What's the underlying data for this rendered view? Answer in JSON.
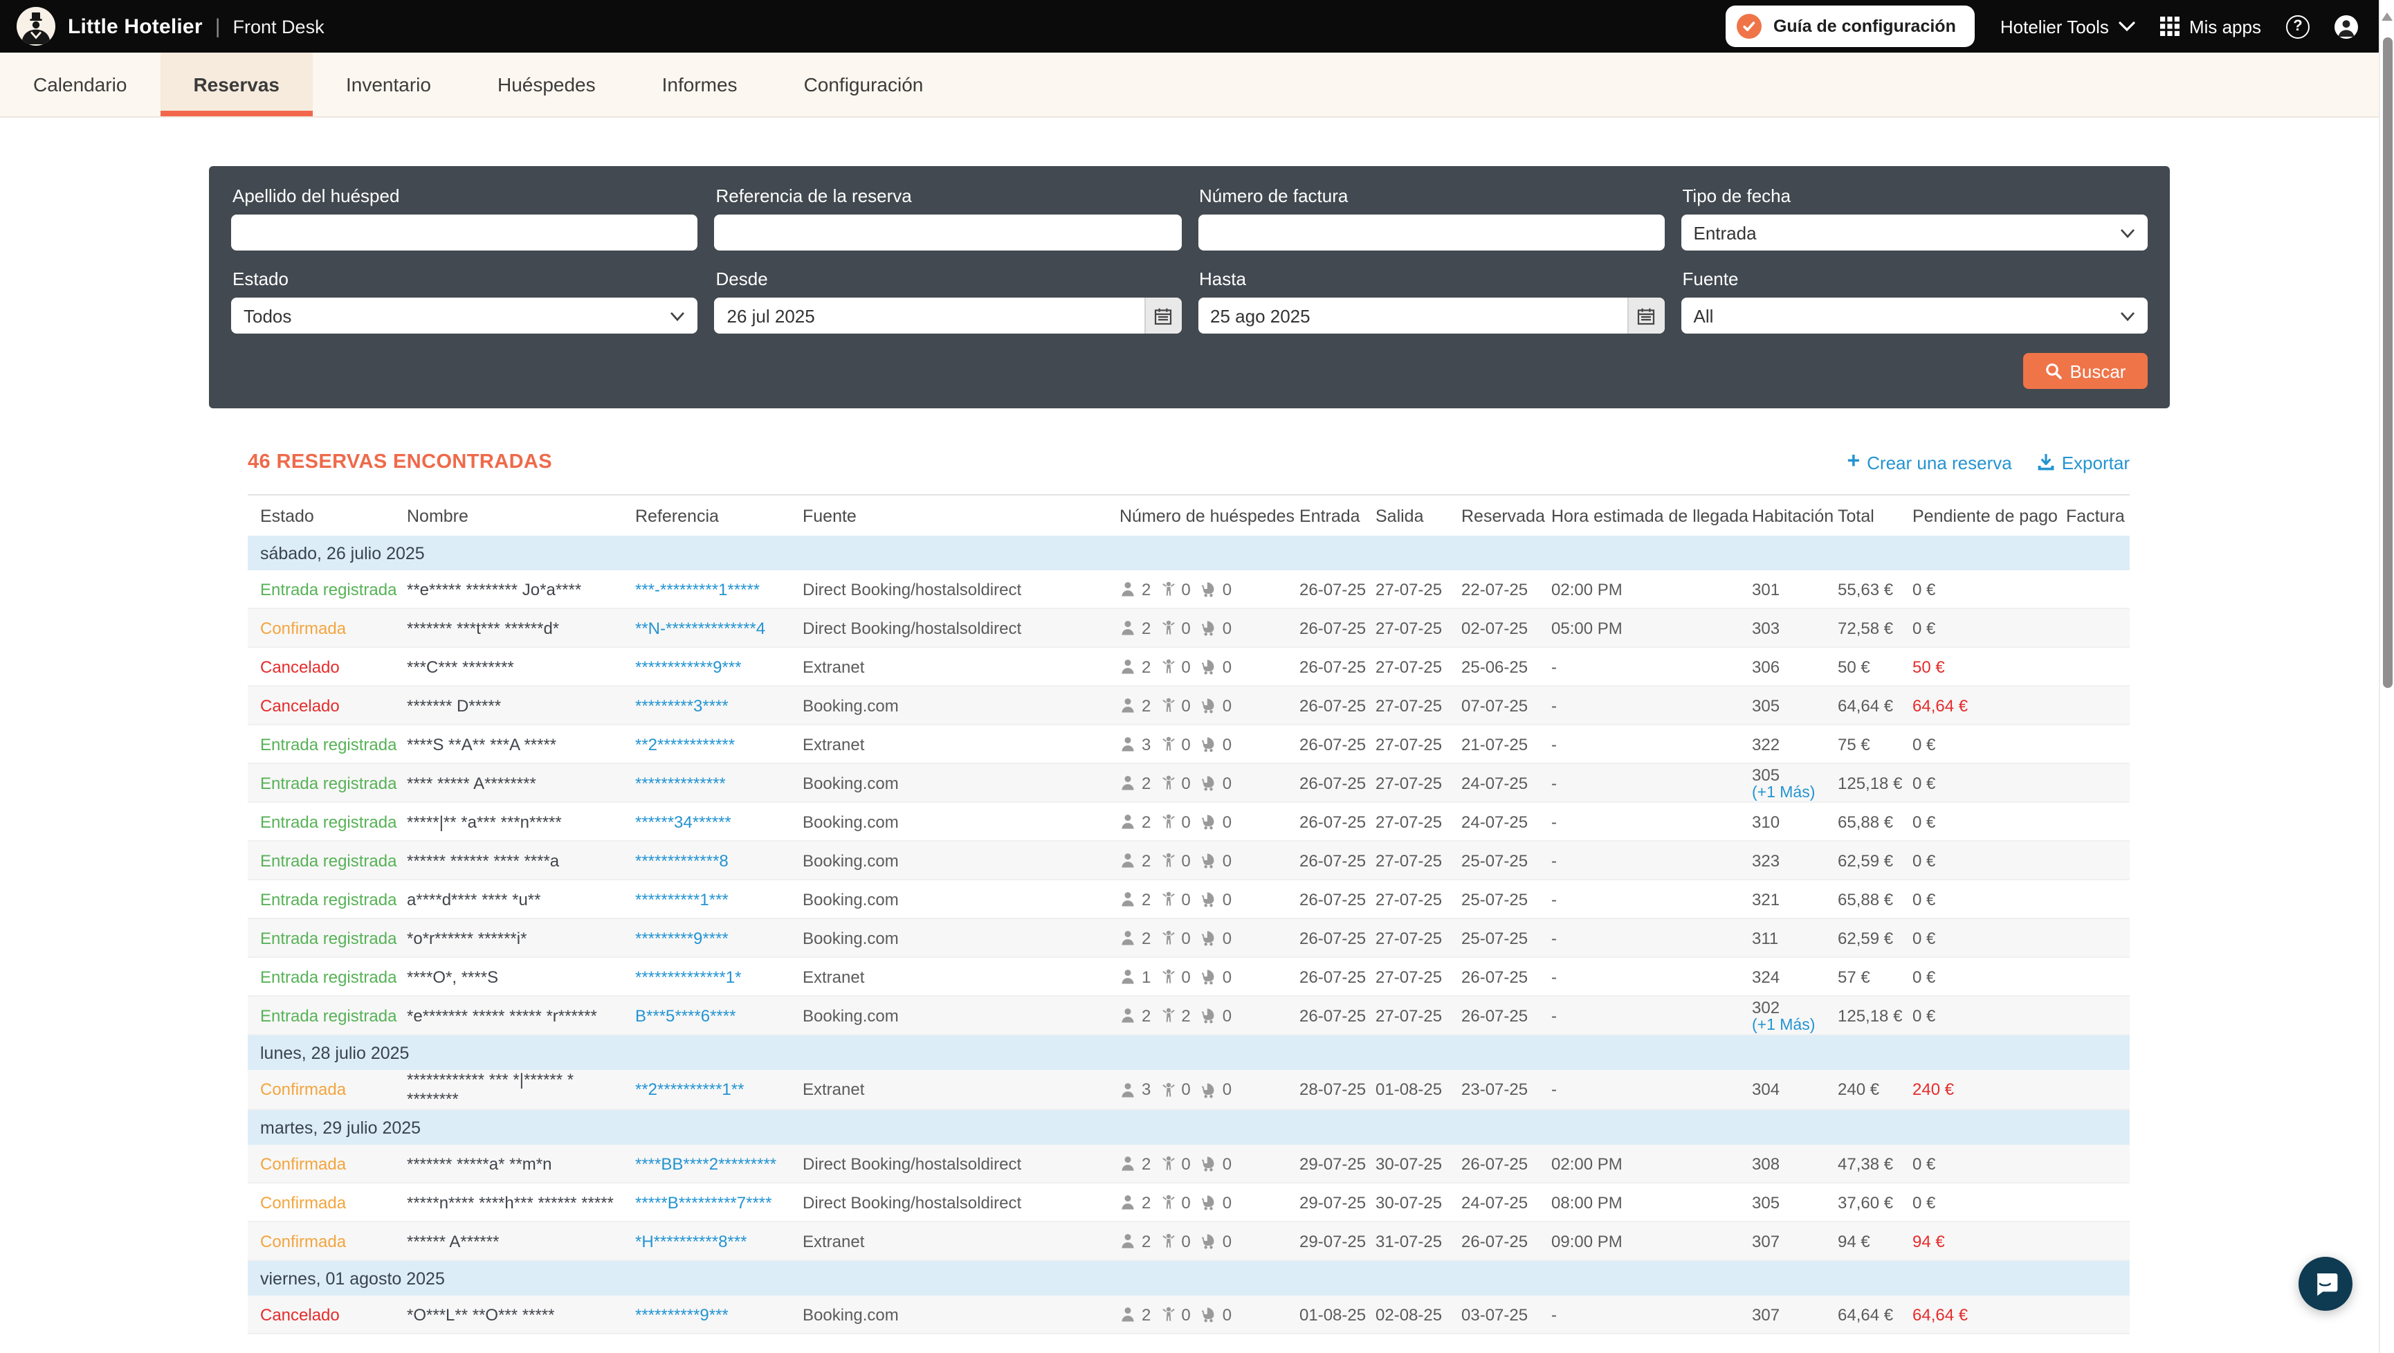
{
  "topbar": {
    "brand": "Little Hotelier",
    "product": "Front Desk",
    "setup_guide": "Guía de configuración",
    "hotelier_tools": "Hotelier Tools",
    "my_apps": "Mis apps"
  },
  "nav": {
    "tabs": [
      {
        "label": "Calendario",
        "active": false
      },
      {
        "label": "Reservas",
        "active": true
      },
      {
        "label": "Inventario",
        "active": false
      },
      {
        "label": "Huéspedes",
        "active": false
      },
      {
        "label": "Informes",
        "active": false
      },
      {
        "label": "Configuración",
        "active": false
      }
    ]
  },
  "filters": {
    "guest_last_name": {
      "label": "Apellido del huésped",
      "value": ""
    },
    "booking_reference": {
      "label": "Referencia de la reserva",
      "value": ""
    },
    "invoice_number": {
      "label": "Número de factura",
      "value": ""
    },
    "date_type": {
      "label": "Tipo de fecha",
      "value": "Entrada"
    },
    "status": {
      "label": "Estado",
      "value": "Todos"
    },
    "from": {
      "label": "Desde",
      "value": "26 jul 2025"
    },
    "to": {
      "label": "Hasta",
      "value": "25 ago 2025"
    },
    "source": {
      "label": "Fuente",
      "value": "All"
    },
    "search_label": "Buscar"
  },
  "results": {
    "count_title": "46 RESERVAS ENCONTRADAS",
    "create_label": "Crear una reserva",
    "export_label": "Exportar",
    "columns": [
      "Estado",
      "Nombre",
      "Referencia",
      "Fuente",
      "Número de huéspedes",
      "Entrada",
      "Salida",
      "Reservada",
      "Hora estimada de llegada",
      "Habitación",
      "Total",
      "Pendiente de pago",
      "Factura"
    ],
    "status_colors": {
      "Entrada registrada": "#57b257",
      "Confirmada": "#f3a53e",
      "Cancelado": "#e52c2c"
    },
    "groups": [
      {
        "date": "sábado, 26 julio 2025",
        "rows": [
          {
            "status": "Entrada registrada",
            "name": "**e***** ******** Jo*a****",
            "reference": "***-*********1*****",
            "source": "Direct Booking/hostalsoldirect",
            "adults": 2,
            "children": 0,
            "infants": 0,
            "checkin": "26-07-25",
            "checkout": "27-07-25",
            "booked": "22-07-25",
            "eta": "02:00 PM",
            "room": "301",
            "room_more": "",
            "total": "55,63 €",
            "pending": "0 €",
            "pending_due": false,
            "invoice": ""
          },
          {
            "status": "Confirmada",
            "name": "******* ***t*** ******d*",
            "reference": "**N-**************4",
            "source": "Direct Booking/hostalsoldirect",
            "adults": 2,
            "children": 0,
            "infants": 0,
            "checkin": "26-07-25",
            "checkout": "27-07-25",
            "booked": "02-07-25",
            "eta": "05:00 PM",
            "room": "303",
            "room_more": "",
            "total": "72,58 €",
            "pending": "0 €",
            "pending_due": false,
            "invoice": ""
          },
          {
            "status": "Cancelado",
            "name": "***C*** ********",
            "reference": "************9***",
            "source": "Extranet",
            "adults": 2,
            "children": 0,
            "infants": 0,
            "checkin": "26-07-25",
            "checkout": "27-07-25",
            "booked": "25-06-25",
            "eta": "-",
            "room": "306",
            "room_more": "",
            "total": "50 €",
            "pending": "50 €",
            "pending_due": true,
            "invoice": ""
          },
          {
            "status": "Cancelado",
            "name": "******* D*****",
            "reference": "*********3****",
            "source": "Booking.com",
            "adults": 2,
            "children": 0,
            "infants": 0,
            "checkin": "26-07-25",
            "checkout": "27-07-25",
            "booked": "07-07-25",
            "eta": "-",
            "room": "305",
            "room_more": "",
            "total": "64,64 €",
            "pending": "64,64 €",
            "pending_due": true,
            "invoice": ""
          },
          {
            "status": "Entrada registrada",
            "name": "****S **A** ***A *****",
            "reference": "**2************",
            "source": "Extranet",
            "adults": 3,
            "children": 0,
            "infants": 0,
            "checkin": "26-07-25",
            "checkout": "27-07-25",
            "booked": "21-07-25",
            "eta": "-",
            "room": "322",
            "room_more": "",
            "total": "75 €",
            "pending": "0 €",
            "pending_due": false,
            "invoice": ""
          },
          {
            "status": "Entrada registrada",
            "name": "**** ***** A********",
            "reference": "**************",
            "source": "Booking.com",
            "adults": 2,
            "children": 0,
            "infants": 0,
            "checkin": "26-07-25",
            "checkout": "27-07-25",
            "booked": "24-07-25",
            "eta": "-",
            "room": "305",
            "room_more": "(+1 Más)",
            "total": "125,18 €",
            "pending": "0 €",
            "pending_due": false,
            "invoice": ""
          },
          {
            "status": "Entrada registrada",
            "name": "*****|** *a*** ***n*****",
            "reference": "******34******",
            "source": "Booking.com",
            "adults": 2,
            "children": 0,
            "infants": 0,
            "checkin": "26-07-25",
            "checkout": "27-07-25",
            "booked": "24-07-25",
            "eta": "-",
            "room": "310",
            "room_more": "",
            "total": "65,88 €",
            "pending": "0 €",
            "pending_due": false,
            "invoice": ""
          },
          {
            "status": "Entrada registrada",
            "name": "****** ****** **** ****a",
            "reference": "*************8",
            "source": "Booking.com",
            "adults": 2,
            "children": 0,
            "infants": 0,
            "checkin": "26-07-25",
            "checkout": "27-07-25",
            "booked": "25-07-25",
            "eta": "-",
            "room": "323",
            "room_more": "",
            "total": "62,59 €",
            "pending": "0 €",
            "pending_due": false,
            "invoice": ""
          },
          {
            "status": "Entrada registrada",
            "name": "a****d**** **** *u**",
            "reference": "**********1***",
            "source": "Booking.com",
            "adults": 2,
            "children": 0,
            "infants": 0,
            "checkin": "26-07-25",
            "checkout": "27-07-25",
            "booked": "25-07-25",
            "eta": "-",
            "room": "321",
            "room_more": "",
            "total": "65,88 €",
            "pending": "0 €",
            "pending_due": false,
            "invoice": ""
          },
          {
            "status": "Entrada registrada",
            "name": "*o*r****** ******i*",
            "reference": "*********9****",
            "source": "Booking.com",
            "adults": 2,
            "children": 0,
            "infants": 0,
            "checkin": "26-07-25",
            "checkout": "27-07-25",
            "booked": "25-07-25",
            "eta": "-",
            "room": "311",
            "room_more": "",
            "total": "62,59 €",
            "pending": "0 €",
            "pending_due": false,
            "invoice": ""
          },
          {
            "status": "Entrada registrada",
            "name": "****O*, ****S",
            "reference": "**************1*",
            "source": "Extranet",
            "adults": 1,
            "children": 0,
            "infants": 0,
            "checkin": "26-07-25",
            "checkout": "27-07-25",
            "booked": "26-07-25",
            "eta": "-",
            "room": "324",
            "room_more": "",
            "total": "57 €",
            "pending": "0 €",
            "pending_due": false,
            "invoice": ""
          },
          {
            "status": "Entrada registrada",
            "name": "*e******* ***** ***** *r******",
            "reference": "B***5****6****",
            "source": "Booking.com",
            "adults": 2,
            "children": 2,
            "infants": 0,
            "checkin": "26-07-25",
            "checkout": "27-07-25",
            "booked": "26-07-25",
            "eta": "-",
            "room": "302",
            "room_more": "(+1 Más)",
            "total": "125,18 €",
            "pending": "0 €",
            "pending_due": false,
            "invoice": ""
          }
        ]
      },
      {
        "date": "lunes, 28 julio 2025",
        "rows": [
          {
            "status": "Confirmada",
            "name": "************ *** *|****** * ********",
            "reference": "**2**********1**",
            "source": "Extranet",
            "adults": 3,
            "children": 0,
            "infants": 0,
            "checkin": "28-07-25",
            "checkout": "01-08-25",
            "booked": "23-07-25",
            "eta": "-",
            "room": "304",
            "room_more": "",
            "total": "240 €",
            "pending": "240 €",
            "pending_due": true,
            "invoice": ""
          }
        ]
      },
      {
        "date": "martes, 29 julio 2025",
        "rows": [
          {
            "status": "Confirmada",
            "name": "******* *****a* **m*n",
            "reference": "****BB****2*********",
            "source": "Direct Booking/hostalsoldirect",
            "adults": 2,
            "children": 0,
            "infants": 0,
            "checkin": "29-07-25",
            "checkout": "30-07-25",
            "booked": "26-07-25",
            "eta": "02:00 PM",
            "room": "308",
            "room_more": "",
            "total": "47,38 €",
            "pending": "0 €",
            "pending_due": false,
            "invoice": ""
          },
          {
            "status": "Confirmada",
            "name": "*****n**** ****h*** ****** *****",
            "reference": "*****B*********7****",
            "source": "Direct Booking/hostalsoldirect",
            "adults": 2,
            "children": 0,
            "infants": 0,
            "checkin": "29-07-25",
            "checkout": "30-07-25",
            "booked": "24-07-25",
            "eta": "08:00 PM",
            "room": "305",
            "room_more": "",
            "total": "37,60 €",
            "pending": "0 €",
            "pending_due": false,
            "invoice": ""
          },
          {
            "status": "Confirmada",
            "name": "****** A******",
            "reference": "*H**********8***",
            "source": "Extranet",
            "adults": 2,
            "children": 0,
            "infants": 0,
            "checkin": "29-07-25",
            "checkout": "31-07-25",
            "booked": "26-07-25",
            "eta": "09:00 PM",
            "room": "307",
            "room_more": "",
            "total": "94 €",
            "pending": "94 €",
            "pending_due": true,
            "invoice": ""
          }
        ]
      },
      {
        "date": "viernes, 01 agosto 2025",
        "rows": [
          {
            "status": "Cancelado",
            "name": "*O***L** **O*** *****",
            "reference": "**********9***",
            "source": "Booking.com",
            "adults": 2,
            "children": 0,
            "infants": 0,
            "checkin": "01-08-25",
            "checkout": "02-08-25",
            "booked": "03-07-25",
            "eta": "-",
            "room": "307",
            "room_more": "",
            "total": "64,64 €",
            "pending": "64,64 €",
            "pending_due": true,
            "invoice": ""
          }
        ]
      }
    ]
  },
  "colors": {
    "accent_orange": "#ef7448",
    "tab_underline": "#f2664c",
    "link_blue": "#2494d1",
    "status_green": "#57b257",
    "status_orange": "#f3a53e",
    "status_red": "#e52c2c",
    "band_blue": "#dcedf8",
    "panel_dark": "#424950",
    "topbar_black": "#0b0b0b",
    "nav_cream": "#fcf7f0"
  }
}
